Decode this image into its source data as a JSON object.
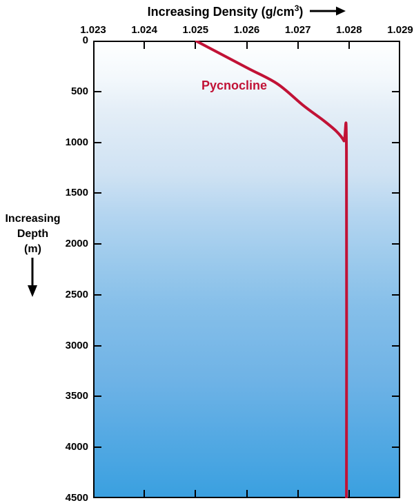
{
  "header": {
    "title_prefix": "Increasing Density (g/cm",
    "title_sup": "3",
    "title_suffix": ")"
  },
  "left_axis_label": {
    "lines": [
      "Increasing",
      "Depth",
      "(m)"
    ]
  },
  "colors": {
    "curve": "#c11236",
    "axis": "#000000",
    "gradient_top": "#feffff",
    "gradient_bottom": "#3aa0e0"
  },
  "chart_data": {
    "type": "line",
    "title": "Increasing Density (g/cm³)",
    "xlabel": "Increasing Density (g/cm³)",
    "ylabel": "Increasing Depth (m)",
    "x_tick_labels": [
      "1.023",
      "1.024",
      "1.025",
      "1.026",
      "1.027",
      "1.028",
      "1.029"
    ],
    "y_tick_labels": [
      "0",
      "500",
      "1000",
      "1500",
      "2000",
      "2500",
      "3000",
      "3500",
      "4000",
      "4500"
    ],
    "xlim": [
      1.023,
      1.029
    ],
    "ylim": [
      0,
      4500
    ],
    "y_axis_inverted": true,
    "grid": false,
    "legend": "none",
    "background": "blue gradient, light at surface to deeper blue at depth",
    "series": [
      {
        "name": "Pycnocline",
        "color": "#c11236",
        "points": [
          {
            "density": 1.025,
            "depth": 0
          },
          {
            "density": 1.026,
            "depth": 265
          },
          {
            "density": 1.0266,
            "depth": 425
          },
          {
            "density": 1.0271,
            "depth": 635
          },
          {
            "density": 1.0275,
            "depth": 785
          },
          {
            "density": 1.02775,
            "depth": 890
          },
          {
            "density": 1.0279,
            "depth": 985
          },
          {
            "density": 1.02795,
            "depth": 1090
          },
          {
            "density": 1.02795,
            "depth": 4500
          }
        ]
      }
    ],
    "annotations": [
      {
        "text": "Pycnocline",
        "color": "#c11236",
        "near": "upper part of curve"
      }
    ]
  },
  "curve_label": "Pycnocline"
}
